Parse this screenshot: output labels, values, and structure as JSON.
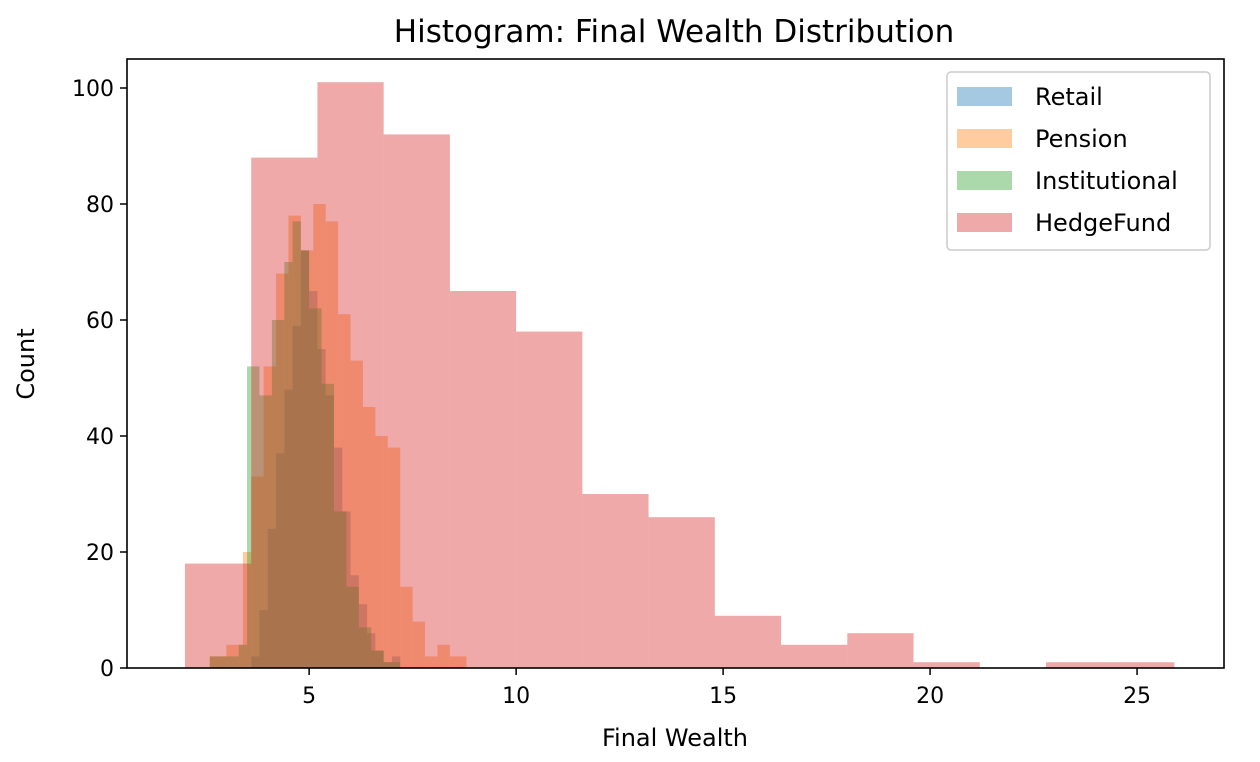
{
  "chart_data": {
    "type": "histogram",
    "title": "Histogram: Final Wealth Distribution",
    "xlabel": "Final Wealth",
    "ylabel": "Count",
    "xlim": [
      0.6,
      27.1
    ],
    "ylim": [
      0,
      105
    ],
    "xticks": [
      5,
      10,
      15,
      20,
      25
    ],
    "yticks": [
      0,
      20,
      40,
      60,
      80,
      100
    ],
    "legend_position": "top-right",
    "bar_alpha": 0.4,
    "series": [
      {
        "name": "Retail",
        "color": "#1f77b4",
        "bins": [
          [
            3.6,
            3.8,
            2
          ],
          [
            3.8,
            4.0,
            10
          ],
          [
            4.0,
            4.2,
            24
          ],
          [
            4.2,
            4.4,
            37
          ],
          [
            4.4,
            4.6,
            48
          ],
          [
            4.6,
            4.8,
            59
          ],
          [
            4.8,
            5.0,
            72
          ],
          [
            5.0,
            5.2,
            65
          ],
          [
            5.2,
            5.4,
            55
          ],
          [
            5.4,
            5.6,
            47
          ],
          [
            5.6,
            5.8,
            38
          ],
          [
            5.8,
            6.0,
            27
          ],
          [
            6.0,
            6.2,
            16
          ],
          [
            6.2,
            6.4,
            11
          ],
          [
            6.4,
            6.6,
            6
          ],
          [
            6.6,
            6.8,
            3
          ],
          [
            6.8,
            7.0,
            1
          ],
          [
            7.0,
            7.2,
            2
          ]
        ]
      },
      {
        "name": "Pension",
        "color": "#ff7f0e",
        "bins": [
          [
            2.6,
            3.0,
            2
          ],
          [
            3.0,
            3.4,
            4
          ],
          [
            3.4,
            3.6,
            20
          ],
          [
            3.6,
            3.9,
            33
          ],
          [
            3.9,
            4.2,
            52
          ],
          [
            4.2,
            4.5,
            68
          ],
          [
            4.5,
            4.8,
            78
          ],
          [
            4.8,
            5.1,
            72
          ],
          [
            5.1,
            5.4,
            80
          ],
          [
            5.4,
            5.7,
            77
          ],
          [
            5.7,
            6.0,
            61
          ],
          [
            6.0,
            6.3,
            53
          ],
          [
            6.3,
            6.6,
            45
          ],
          [
            6.6,
            6.9,
            40
          ],
          [
            6.9,
            7.2,
            38
          ],
          [
            7.2,
            7.5,
            14
          ],
          [
            7.5,
            7.8,
            8
          ],
          [
            7.8,
            8.1,
            2
          ],
          [
            8.1,
            8.4,
            4
          ],
          [
            8.4,
            8.8,
            2
          ]
        ]
      },
      {
        "name": "Institutional",
        "color": "#2ca02c",
        "bins": [
          [
            2.6,
            3.3,
            2
          ],
          [
            3.3,
            3.5,
            4
          ],
          [
            3.5,
            3.8,
            52
          ],
          [
            3.8,
            4.1,
            47
          ],
          [
            4.1,
            4.4,
            60
          ],
          [
            4.4,
            4.6,
            70
          ],
          [
            4.6,
            4.8,
            77
          ],
          [
            4.8,
            5.0,
            72
          ],
          [
            5.0,
            5.3,
            62
          ],
          [
            5.3,
            5.6,
            49
          ],
          [
            5.6,
            5.9,
            27
          ],
          [
            5.9,
            6.2,
            14
          ],
          [
            6.2,
            6.5,
            7
          ],
          [
            6.5,
            6.8,
            3
          ],
          [
            6.8,
            7.2,
            1
          ]
        ]
      },
      {
        "name": "HedgeFund",
        "color": "#d62728",
        "bins": [
          [
            2.0,
            3.6,
            18
          ],
          [
            3.6,
            5.2,
            88
          ],
          [
            5.2,
            6.8,
            101
          ],
          [
            6.8,
            8.4,
            92
          ],
          [
            8.4,
            10.0,
            65
          ],
          [
            10.0,
            11.6,
            58
          ],
          [
            11.6,
            13.2,
            30
          ],
          [
            13.2,
            14.8,
            26
          ],
          [
            14.8,
            16.4,
            9
          ],
          [
            16.4,
            18.0,
            4
          ],
          [
            18.0,
            19.6,
            6
          ],
          [
            19.6,
            21.2,
            1
          ],
          [
            21.2,
            22.8,
            0
          ],
          [
            22.8,
            24.4,
            1
          ],
          [
            24.4,
            25.9,
            1
          ]
        ]
      }
    ]
  }
}
